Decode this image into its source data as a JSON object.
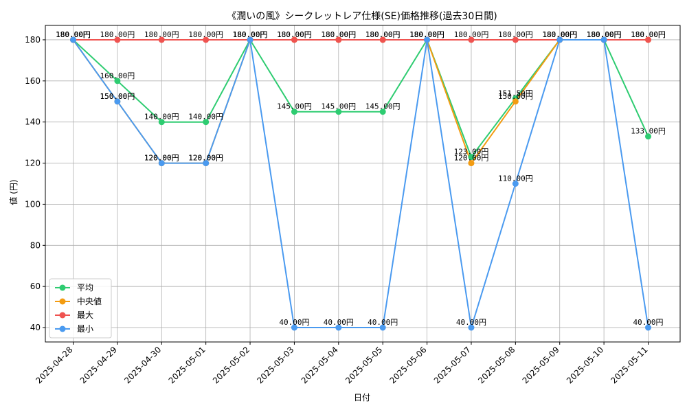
{
  "chart_data": {
    "type": "line",
    "title": "《潤いの風》シークレットレア仕様(SE)価格推移(過去30日間)",
    "xlabel": "日付",
    "ylabel": "値 (円)",
    "ylim": [
      33,
      187
    ],
    "yticks": [
      40,
      60,
      80,
      100,
      120,
      140,
      160,
      180
    ],
    "grid": true,
    "legend_position": "lower-left",
    "value_suffix": "円",
    "categories": [
      "2025-04-28",
      "2025-04-29",
      "2025-04-30",
      "2025-05-01",
      "2025-05-02",
      "2025-05-03",
      "2025-05-04",
      "2025-05-05",
      "2025-05-06",
      "2025-05-07",
      "2025-05-08",
      "2025-05-09",
      "2025-05-10",
      "2025-05-11"
    ],
    "series": [
      {
        "name": "平均",
        "color": "#2ecc71",
        "values": [
          180,
          160,
          140,
          140,
          180,
          145,
          145,
          145,
          180,
          123,
          151.5,
          180,
          180,
          133
        ]
      },
      {
        "name": "中央値",
        "color": "#f39c12",
        "values": [
          180,
          150,
          120,
          120,
          180,
          180,
          180,
          180,
          180,
          120,
          150,
          180,
          180,
          180
        ]
      },
      {
        "name": "最大",
        "color": "#ef5350",
        "values": [
          180,
          180,
          180,
          180,
          180,
          180,
          180,
          180,
          180,
          180,
          180,
          180,
          180,
          180
        ]
      },
      {
        "name": "最小",
        "color": "#4a9af0",
        "values": [
          180,
          150,
          120,
          120,
          180,
          40,
          40,
          40,
          180,
          40,
          110,
          180,
          180,
          40
        ]
      }
    ]
  }
}
